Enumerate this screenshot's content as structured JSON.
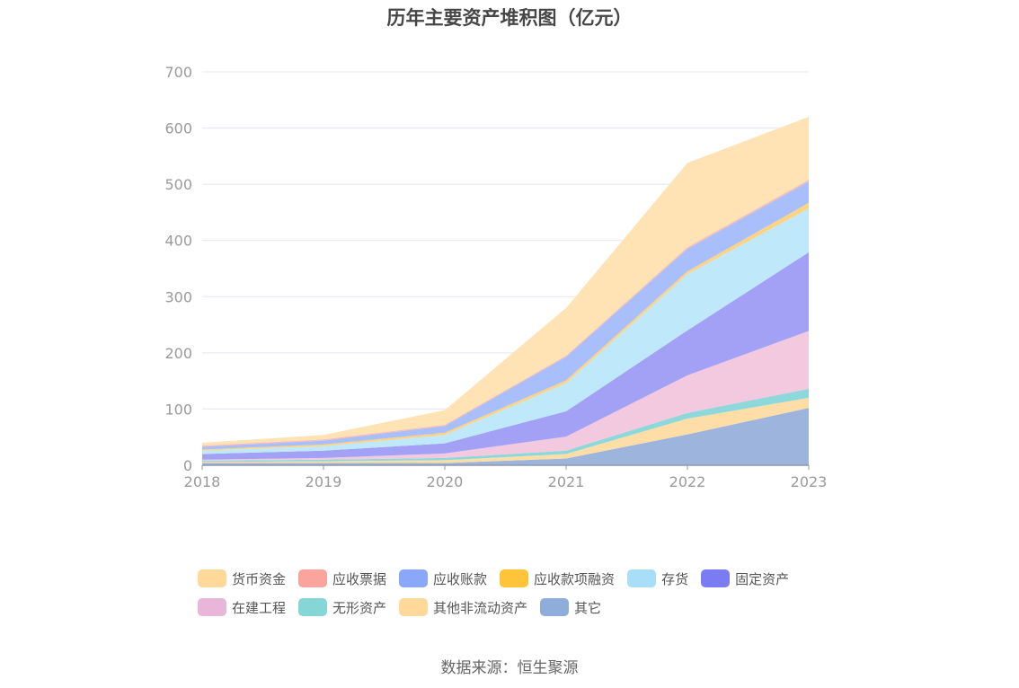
{
  "chart_data": {
    "type": "area",
    "stacked": true,
    "title": "历年主要资产堆积图（亿元）",
    "x": [
      "2018",
      "2019",
      "2020",
      "2021",
      "2022",
      "2023"
    ],
    "yticks": [
      "0",
      "100",
      "200",
      "300",
      "400",
      "500",
      "600",
      "700"
    ],
    "ylim": [
      0,
      700
    ],
    "grid": true,
    "legend_position": "bottom",
    "series": [
      {
        "name": "其它",
        "color": "#9DB5DC",
        "values": [
          4,
          4,
          4,
          12,
          55,
          102
        ]
      },
      {
        "name": "其他非流动资产",
        "color": "#FFDDA6",
        "values": [
          2,
          3,
          5,
          8,
          28,
          18
        ]
      },
      {
        "name": "无形资产",
        "color": "#8DD8DA",
        "values": [
          2,
          3,
          4,
          6,
          10,
          16
        ]
      },
      {
        "name": "在建工程",
        "color": "#F2C9DE",
        "values": [
          2,
          3,
          8,
          25,
          67,
          103
        ]
      },
      {
        "name": "固定资产",
        "color": "#A3A1F5",
        "values": [
          10,
          13,
          18,
          45,
          80,
          140
        ]
      },
      {
        "name": "存货",
        "color": "#BFE8FA",
        "values": [
          6,
          8,
          15,
          50,
          100,
          78
        ]
      },
      {
        "name": "应收款项融资",
        "color": "#FFD380",
        "values": [
          2,
          3,
          4,
          5,
          5,
          10
        ]
      },
      {
        "name": "应收账款",
        "color": "#A9BFFB",
        "values": [
          5,
          7,
          12,
          42,
          40,
          38
        ]
      },
      {
        "name": "应收票据",
        "color": "#F8BBB7",
        "values": [
          2,
          2,
          2,
          2,
          3,
          3
        ]
      },
      {
        "name": "货币资金",
        "color": "#FFE3B5",
        "values": [
          5,
          8,
          26,
          85,
          150,
          112
        ]
      }
    ],
    "legend": [
      [
        {
          "name": "货币资金",
          "color": "#FFD99A"
        },
        {
          "name": "应收票据",
          "color": "#F9A49C"
        },
        {
          "name": "应收账款",
          "color": "#8BA8F8"
        },
        {
          "name": "应收款项融资",
          "color": "#FFC43A"
        },
        {
          "name": "存货",
          "color": "#A8DEF8"
        },
        {
          "name": "固定资产",
          "color": "#7C7CF2"
        }
      ],
      [
        {
          "name": "在建工程",
          "color": "#E8B6D8"
        },
        {
          "name": "无形资产",
          "color": "#86D5D7"
        },
        {
          "name": "其他非流动资产",
          "color": "#FFD99A"
        },
        {
          "name": "其它",
          "color": "#8EADDB"
        }
      ]
    ]
  },
  "source": "数据来源：恒生聚源"
}
